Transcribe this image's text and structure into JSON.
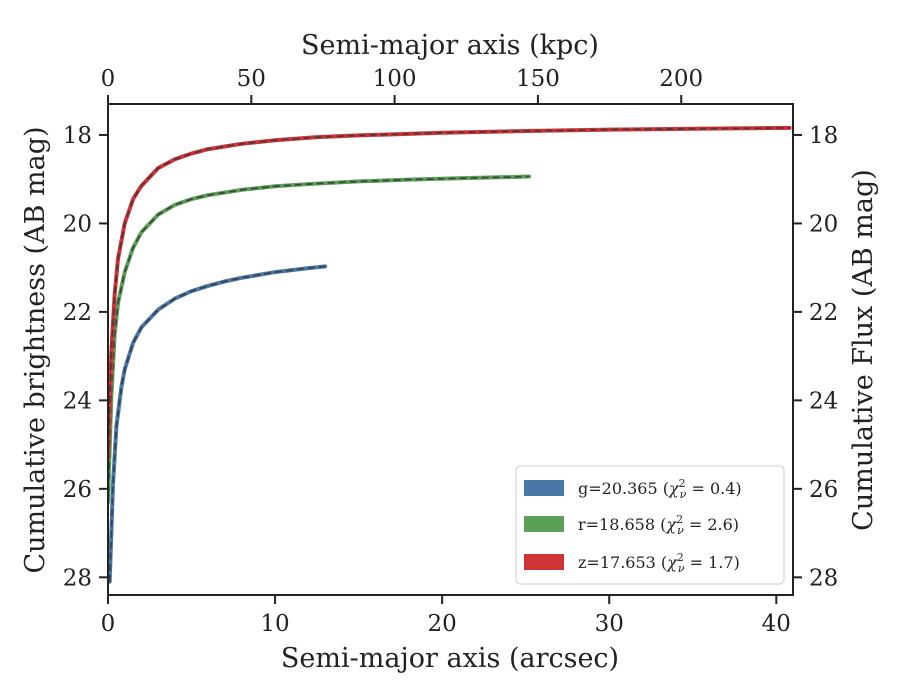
{
  "chart_data": {
    "type": "line",
    "xlabel": "Semi-major axis (arcsec)",
    "x2label": "Semi-major axis (kpc)",
    "ylabel": "Cumulative brightness (AB mag)",
    "y2label": "Cumulative Flux (AB mag)",
    "xlim": [
      0,
      41
    ],
    "x2lim": [
      0,
      239
    ],
    "ylim": [
      28.4,
      17.3
    ],
    "inverted_y": true,
    "xticks": [
      "0",
      "10",
      "20",
      "30",
      "40"
    ],
    "x2ticks": [
      "0",
      "50",
      "100",
      "150",
      "200"
    ],
    "yticks": [
      "18",
      "20",
      "22",
      "24",
      "26",
      "28"
    ],
    "legend_position": "lower right",
    "grid": false,
    "series": [
      {
        "name": "g=20.365 (χ²ν = 0.4)",
        "label_main": "g=20.365 (",
        "label_close": ")",
        "chi2": "0.4",
        "color": "#4878a8",
        "x": [
          0.1,
          0.3,
          0.5,
          0.8,
          1.0,
          1.5,
          2.0,
          3.0,
          4.0,
          5.0,
          6.0,
          7.0,
          8.0,
          10.0,
          12.0,
          13.0
        ],
        "y": [
          28.1,
          25.9,
          24.6,
          23.7,
          23.3,
          22.7,
          22.35,
          21.95,
          21.7,
          21.53,
          21.41,
          21.31,
          21.23,
          21.1,
          21.01,
          20.97
        ]
      },
      {
        "name": "r=18.658 (χ²ν = 2.6)",
        "label_main": "r=18.658 (",
        "label_close": ")",
        "chi2": "2.6",
        "color": "#5aa155",
        "x": [
          0.0,
          0.2,
          0.4,
          0.6,
          1.0,
          1.5,
          2.0,
          3.0,
          4.0,
          5.0,
          6.0,
          8.0,
          10.0,
          12.0,
          15.0,
          18.0,
          21.0,
          25.2
        ],
        "y": [
          26.3,
          23.9,
          22.5,
          21.8,
          21.1,
          20.55,
          20.2,
          19.8,
          19.58,
          19.45,
          19.36,
          19.24,
          19.16,
          19.11,
          19.05,
          19.01,
          18.98,
          18.94
        ]
      },
      {
        "name": "z=17.653 (χ²ν = 1.7)",
        "label_main": "z=17.653 (",
        "label_close": ")",
        "chi2": "1.7",
        "color": "#d03236",
        "x": [
          0.0,
          0.2,
          0.4,
          0.6,
          1.0,
          1.5,
          2.0,
          3.0,
          4.0,
          5.0,
          6.0,
          8.0,
          10.0,
          12.5,
          15.0,
          20.0,
          25.0,
          30.0,
          35.0,
          40.8
        ],
        "y": [
          25.3,
          22.9,
          21.6,
          20.8,
          20.0,
          19.45,
          19.15,
          18.75,
          18.55,
          18.42,
          18.32,
          18.2,
          18.12,
          18.05,
          18.01,
          17.95,
          17.91,
          17.88,
          17.86,
          17.84
        ]
      }
    ]
  }
}
